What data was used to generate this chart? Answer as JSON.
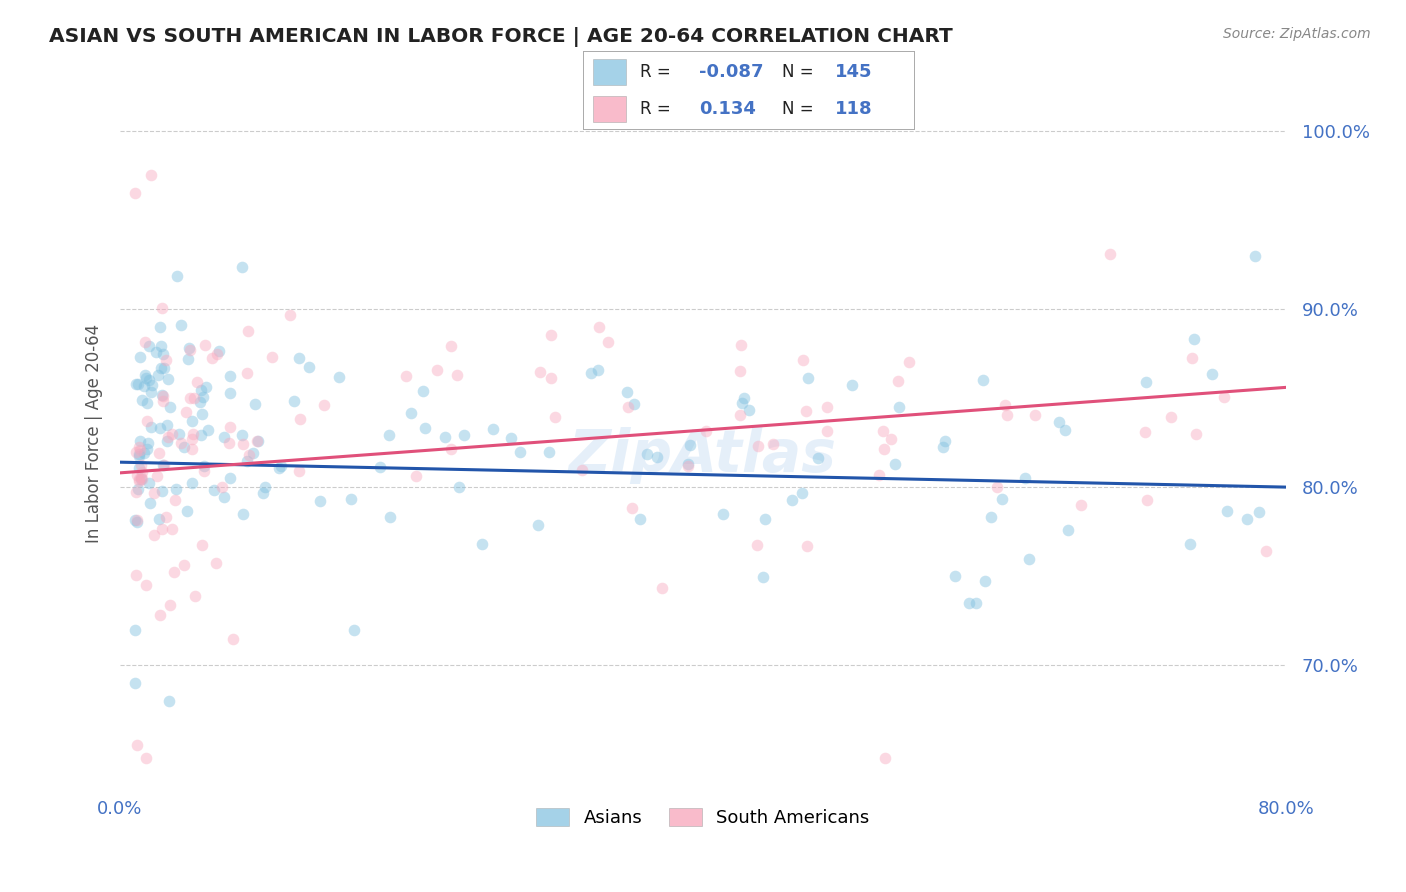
{
  "title": "ASIAN VS SOUTH AMERICAN IN LABOR FORCE | AGE 20-64 CORRELATION CHART",
  "source": "Source: ZipAtlas.com",
  "ylabel": "In Labor Force | Age 20-64",
  "xlim": [
    0.0,
    0.8
  ],
  "ylim": [
    0.63,
    1.03
  ],
  "yticks": [
    0.7,
    0.8,
    0.9,
    1.0
  ],
  "ytick_labels": [
    "70.0%",
    "80.0%",
    "90.0%",
    "100.0%"
  ],
  "xticks": [
    0.0,
    0.2,
    0.4,
    0.6,
    0.8
  ],
  "xtick_labels": [
    "0.0%",
    "",
    "",
    "",
    "80.0%"
  ],
  "watermark": "ZipAtlas",
  "blue_R": "-0.087",
  "blue_N": "145",
  "pink_R": "0.134",
  "pink_N": "118",
  "blue_line_x": [
    0.0,
    0.8
  ],
  "blue_line_y": [
    0.814,
    0.8
  ],
  "pink_line_x": [
    0.0,
    0.8
  ],
  "pink_line_y": [
    0.808,
    0.856
  ],
  "background_color": "#ffffff",
  "grid_color": "#cccccc",
  "scatter_size": 70,
  "scatter_alpha": 0.45,
  "blue_color": "#7fbfdf",
  "pink_color": "#f8aabf",
  "blue_line_color": "#2255aa",
  "pink_line_color": "#e0507a",
  "title_color": "#222222",
  "axis_label_color": "#555555",
  "tick_color": "#4472c4",
  "source_color": "#888888"
}
